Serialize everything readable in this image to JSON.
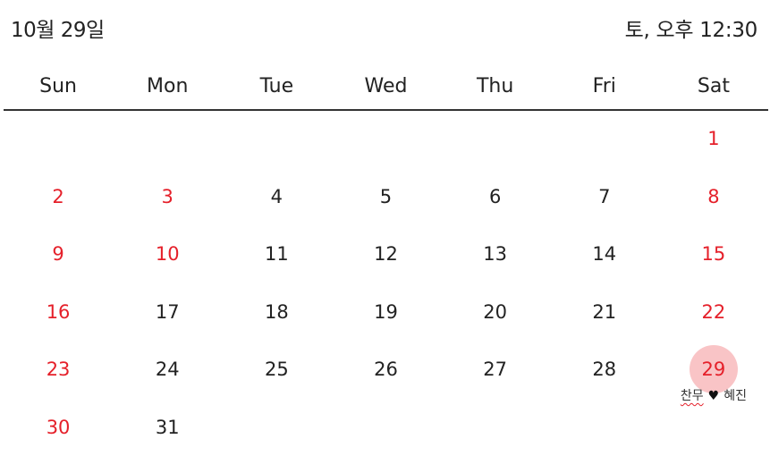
{
  "header": {
    "date_label": "10월 29일",
    "time_label": "토, 오후 12:30"
  },
  "colors": {
    "weekend_red": "#e5202a",
    "today_highlight": "#f9c4c6",
    "divider": "#333333"
  },
  "calendar": {
    "weekdays": [
      "Sun",
      "Mon",
      "Tue",
      "Wed",
      "Thu",
      "Fri",
      "Sat"
    ],
    "first_weekday_index": 6,
    "days": [
      {
        "n": "1",
        "red": true
      },
      {
        "n": "2",
        "red": true
      },
      {
        "n": "3",
        "red": true
      },
      {
        "n": "4",
        "red": false
      },
      {
        "n": "5",
        "red": false
      },
      {
        "n": "6",
        "red": false
      },
      {
        "n": "7",
        "red": false
      },
      {
        "n": "8",
        "red": true
      },
      {
        "n": "9",
        "red": true
      },
      {
        "n": "10",
        "red": true
      },
      {
        "n": "11",
        "red": false
      },
      {
        "n": "12",
        "red": false
      },
      {
        "n": "13",
        "red": false
      },
      {
        "n": "14",
        "red": false
      },
      {
        "n": "15",
        "red": true
      },
      {
        "n": "16",
        "red": true
      },
      {
        "n": "17",
        "red": false
      },
      {
        "n": "18",
        "red": false
      },
      {
        "n": "19",
        "red": false
      },
      {
        "n": "20",
        "red": false
      },
      {
        "n": "21",
        "red": false
      },
      {
        "n": "22",
        "red": true
      },
      {
        "n": "23",
        "red": true
      },
      {
        "n": "24",
        "red": false
      },
      {
        "n": "25",
        "red": false
      },
      {
        "n": "26",
        "red": false
      },
      {
        "n": "27",
        "red": false
      },
      {
        "n": "28",
        "red": false
      },
      {
        "n": "29",
        "red": true,
        "today": true,
        "event": {
          "name1": "찬무",
          "heart": "♥",
          "name2": "혜진"
        }
      },
      {
        "n": "30",
        "red": true
      },
      {
        "n": "31",
        "red": false
      }
    ]
  }
}
